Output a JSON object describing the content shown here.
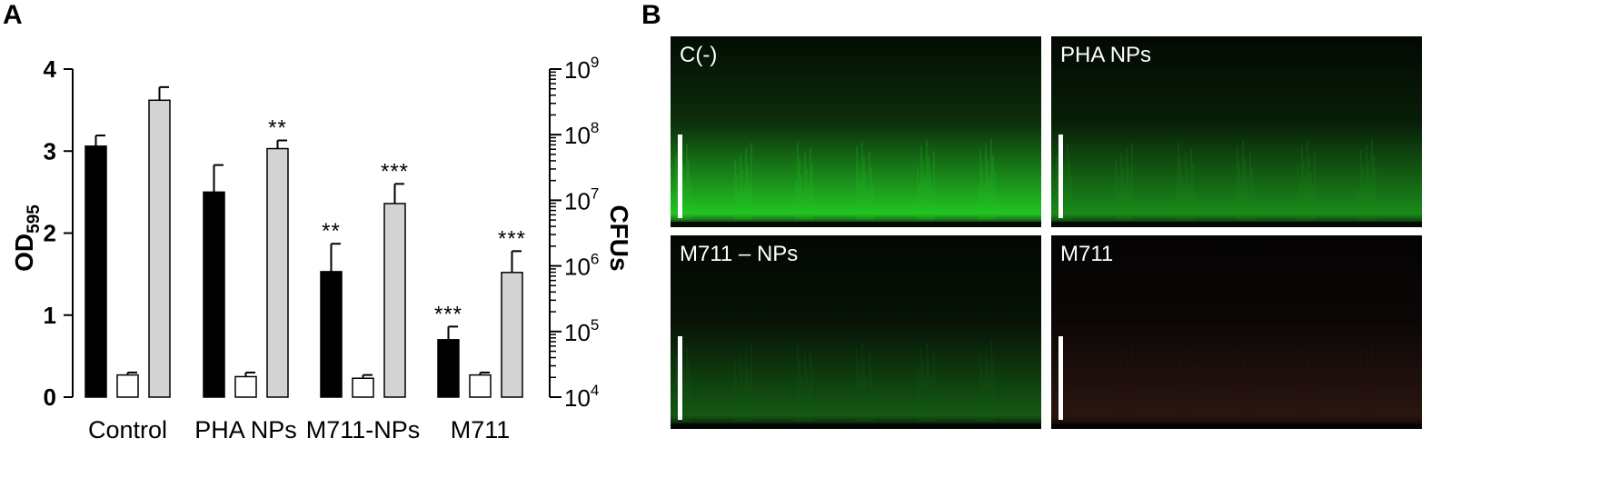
{
  "panel_a_label": "A",
  "panel_b_label": "B",
  "chart_data": {
    "type": "bar",
    "categories": [
      "Control",
      "PHA NPs",
      "M711-NPs",
      "M711"
    ],
    "ylabel_main": "OD",
    "ylabel_sub": "595",
    "y2label": "CFUs",
    "ylim": [
      0,
      4
    ],
    "yticks": [
      "0",
      "1",
      "2",
      "3",
      "4"
    ],
    "y2_log_range": [
      4,
      9
    ],
    "y2ticks": [
      {
        "base": "10",
        "exp": "4"
      },
      {
        "base": "10",
        "exp": "5"
      },
      {
        "base": "10",
        "exp": "6"
      },
      {
        "base": "10",
        "exp": "7"
      },
      {
        "base": "10",
        "exp": "8"
      },
      {
        "base": "10",
        "exp": "9"
      }
    ],
    "series": [
      {
        "color": "#000000",
        "values": [
          3.06,
          2.5,
          1.53,
          0.7
        ],
        "errors": [
          0.13,
          0.33,
          0.34,
          0.16
        ],
        "sig": [
          "",
          "",
          "**",
          "***"
        ]
      },
      {
        "color": "#ffffff",
        "values": [
          0.27,
          0.25,
          0.23,
          0.27
        ],
        "errors": [
          0.03,
          0.05,
          0.04,
          0.03
        ],
        "sig": [
          "",
          "",
          "",
          ""
        ]
      },
      {
        "color": "#d3d3d3",
        "values": [
          3.62,
          3.03,
          2.36,
          1.52
        ],
        "errors": [
          0.16,
          0.1,
          0.24,
          0.26
        ],
        "sig": [
          "",
          "**",
          "***",
          "***"
        ]
      }
    ]
  },
  "micrographs": [
    {
      "label": "C(-)",
      "bg": "#030c03",
      "base": "#0b2e0b",
      "band": "#23c423",
      "scalebar": true
    },
    {
      "label": "PHA NPs",
      "bg": "#030903",
      "base": "#081e08",
      "band": "#1a8a1a",
      "scalebar": true
    },
    {
      "label": "M711 – NPs",
      "bg": "#030703",
      "base": "#061306",
      "band": "#145814",
      "scalebar": true
    },
    {
      "label": "M711",
      "bg": "#050404",
      "base": "#0c0706",
      "band": "#2a1510",
      "scalebar": true
    }
  ]
}
